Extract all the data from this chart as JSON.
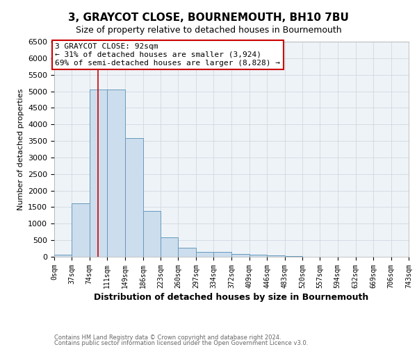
{
  "title": "3, GRAYCOT CLOSE, BOURNEMOUTH, BH10 7BU",
  "subtitle": "Size of property relative to detached houses in Bournemouth",
  "xlabel": "Distribution of detached houses by size in Bournemouth",
  "ylabel": "Number of detached properties",
  "footer1": "Contains HM Land Registry data © Crown copyright and database right 2024.",
  "footer2": "Contains public sector information licensed under the Open Government Licence v3.0.",
  "bar_color": "#ccdded",
  "bar_edge_color": "#6699bb",
  "bin_edges": [
    0,
    37,
    74,
    111,
    149,
    186,
    223,
    260,
    297,
    334,
    372,
    409,
    446,
    483,
    520,
    557,
    594,
    632,
    669,
    706,
    743
  ],
  "bar_heights": [
    70,
    1620,
    5050,
    5050,
    3580,
    1380,
    590,
    270,
    150,
    140,
    90,
    70,
    45,
    25,
    5,
    0,
    0,
    0,
    0,
    0
  ],
  "tick_labels": [
    "0sqm",
    "37sqm",
    "74sqm",
    "111sqm",
    "149sqm",
    "186sqm",
    "223sqm",
    "260sqm",
    "297sqm",
    "334sqm",
    "372sqm",
    "409sqm",
    "446sqm",
    "483sqm",
    "520sqm",
    "557sqm",
    "594sqm",
    "632sqm",
    "669sqm",
    "706sqm",
    "743sqm"
  ],
  "ylim": [
    0,
    6500
  ],
  "yticks": [
    0,
    500,
    1000,
    1500,
    2000,
    2500,
    3000,
    3500,
    4000,
    4500,
    5000,
    5500,
    6000,
    6500
  ],
  "red_line_x": 92,
  "annotation_text": "3 GRAYCOT CLOSE: 92sqm\n← 31% of detached houses are smaller (3,924)\n69% of semi-detached houses are larger (8,828) →",
  "annotation_box_color": "#ffffff",
  "annotation_box_edge": "#cc0000",
  "background_color": "#ffffff",
  "grid_color": "#d0d8e0",
  "title_fontsize": 11,
  "subtitle_fontsize": 9,
  "annotation_fontsize": 8,
  "xlabel_fontsize": 9,
  "ylabel_fontsize": 8,
  "tick_fontsize": 7,
  "ytick_fontsize": 8,
  "footer_fontsize": 6
}
